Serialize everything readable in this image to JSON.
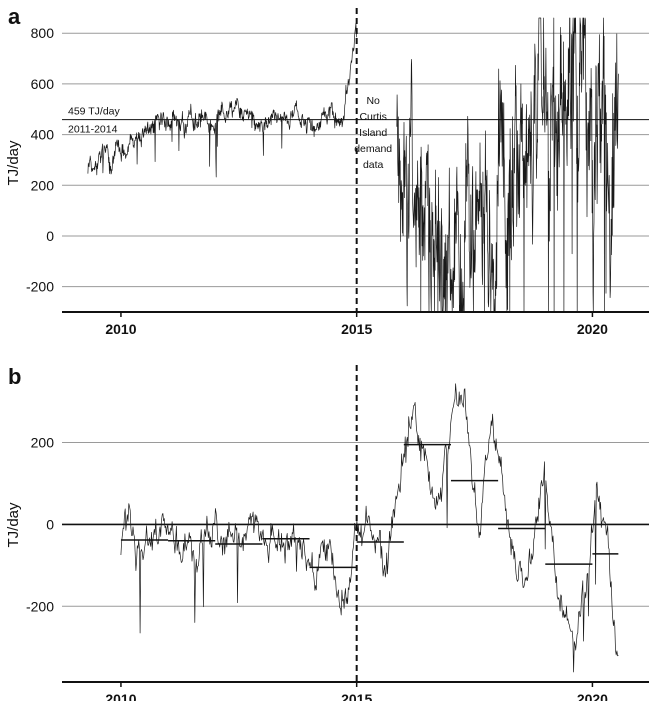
{
  "chart_data": [
    {
      "panel": "a",
      "type": "line",
      "ylabel": "TJ/day",
      "ylim": [
        -300,
        860
      ],
      "yticks": [
        -200,
        0,
        200,
        400,
        600,
        800
      ],
      "xlim": [
        2008.75,
        2021.2
      ],
      "xticks": [
        2010,
        2015,
        2020
      ],
      "grid": true,
      "reference_line": {
        "y": 459,
        "label_top": "459 TJ/day",
        "label_bottom": "2011-2014"
      },
      "vline_x": 2015.0,
      "annotation": [
        "No",
        "Curtis",
        "Island",
        "demand",
        "data"
      ],
      "series_profile": [
        {
          "x": 2009.3,
          "y": 285
        },
        {
          "x": 2009.6,
          "y": 300
        },
        {
          "x": 2009.9,
          "y": 330
        },
        {
          "x": 2010.2,
          "y": 350
        },
        {
          "x": 2010.5,
          "y": 390
        },
        {
          "x": 2010.8,
          "y": 440
        },
        {
          "x": 2011.1,
          "y": 455
        },
        {
          "x": 2011.4,
          "y": 450
        },
        {
          "x": 2011.7,
          "y": 470
        },
        {
          "x": 2012.0,
          "y": 485
        },
        {
          "x": 2012.3,
          "y": 505
        },
        {
          "x": 2012.6,
          "y": 500
        },
        {
          "x": 2012.9,
          "y": 455
        },
        {
          "x": 2013.2,
          "y": 450
        },
        {
          "x": 2013.5,
          "y": 465
        },
        {
          "x": 2013.8,
          "y": 480
        },
        {
          "x": 2014.1,
          "y": 475
        },
        {
          "x": 2014.4,
          "y": 470
        },
        {
          "x": 2014.7,
          "y": 460
        },
        {
          "x": 2014.8,
          "y": 560
        },
        {
          "x": 2014.9,
          "y": 700
        },
        {
          "x": 2015.0,
          "y": 810
        }
      ],
      "series_profile_2": [
        {
          "x": 2015.85,
          "y": 380
        },
        {
          "x": 2016.0,
          "y": 200
        },
        {
          "x": 2016.3,
          "y": 70
        },
        {
          "x": 2016.6,
          "y": -40
        },
        {
          "x": 2016.9,
          "y": -100
        },
        {
          "x": 2017.2,
          "y": -50
        },
        {
          "x": 2017.5,
          "y": 40
        },
        {
          "x": 2017.8,
          "y": 110
        },
        {
          "x": 2018.1,
          "y": 230
        },
        {
          "x": 2018.4,
          "y": 270
        },
        {
          "x": 2018.7,
          "y": 320
        },
        {
          "x": 2019.0,
          "y": 360
        },
        {
          "x": 2019.3,
          "y": 470
        },
        {
          "x": 2019.6,
          "y": 450
        },
        {
          "x": 2019.9,
          "y": 350
        },
        {
          "x": 2020.2,
          "y": 320
        },
        {
          "x": 2020.4,
          "y": 470
        },
        {
          "x": 2020.55,
          "y": 780
        }
      ]
    },
    {
      "panel": "b",
      "type": "line",
      "ylabel": "TJ/day",
      "ylim": [
        -385,
        365
      ],
      "yticks": [
        -200,
        0,
        200
      ],
      "xlim": [
        2008.75,
        2021.2
      ],
      "xticks": [
        2010,
        2015,
        2020
      ],
      "grid": true,
      "vline_x": 2015.0,
      "yearly_means": [
        {
          "x0": 2010.0,
          "x1": 2011.0,
          "y": -38
        },
        {
          "x0": 2011.0,
          "x1": 2012.0,
          "y": -40
        },
        {
          "x0": 2012.0,
          "x1": 2013.0,
          "y": -48
        },
        {
          "x0": 2013.0,
          "x1": 2014.0,
          "y": -35
        },
        {
          "x0": 2014.0,
          "x1": 2015.0,
          "y": -105
        },
        {
          "x0": 2015.0,
          "x1": 2016.0,
          "y": -43
        },
        {
          "x0": 2016.0,
          "x1": 2017.0,
          "y": 195
        },
        {
          "x0": 2017.0,
          "x1": 2018.0,
          "y": 107
        },
        {
          "x0": 2018.0,
          "x1": 2019.0,
          "y": -10
        },
        {
          "x0": 2019.0,
          "x1": 2020.0,
          "y": -97
        },
        {
          "x0": 2020.0,
          "x1": 2020.55,
          "y": -72
        }
      ],
      "series_profile": [
        {
          "x": 2010.0,
          "y": -35
        },
        {
          "x": 2010.4,
          "y": -40
        },
        {
          "x": 2010.8,
          "y": -35
        },
        {
          "x": 2011.2,
          "y": -30
        },
        {
          "x": 2011.6,
          "y": -45
        },
        {
          "x": 2012.0,
          "y": -30
        },
        {
          "x": 2012.4,
          "y": -70
        },
        {
          "x": 2012.8,
          "y": -20
        },
        {
          "x": 2013.2,
          "y": -30
        },
        {
          "x": 2013.6,
          "y": -50
        },
        {
          "x": 2014.0,
          "y": -80
        },
        {
          "x": 2014.4,
          "y": -110
        },
        {
          "x": 2014.8,
          "y": -150
        },
        {
          "x": 2015.0,
          "y": 20
        },
        {
          "x": 2015.3,
          "y": -60
        },
        {
          "x": 2015.6,
          "y": -130
        },
        {
          "x": 2015.9,
          "y": 120
        },
        {
          "x": 2016.2,
          "y": 290
        },
        {
          "x": 2016.5,
          "y": 170
        },
        {
          "x": 2016.8,
          "y": 60
        },
        {
          "x": 2017.0,
          "y": 280
        },
        {
          "x": 2017.3,
          "y": 320
        },
        {
          "x": 2017.6,
          "y": -20
        },
        {
          "x": 2017.9,
          "y": 240
        },
        {
          "x": 2018.1,
          "y": 80
        },
        {
          "x": 2018.4,
          "y": -150
        },
        {
          "x": 2018.7,
          "y": -60
        },
        {
          "x": 2019.0,
          "y": 80
        },
        {
          "x": 2019.3,
          "y": -200
        },
        {
          "x": 2019.6,
          "y": -290
        },
        {
          "x": 2019.9,
          "y": -100
        },
        {
          "x": 2020.1,
          "y": 70
        },
        {
          "x": 2020.3,
          "y": -50
        },
        {
          "x": 2020.45,
          "y": -250
        },
        {
          "x": 2020.55,
          "y": -370
        }
      ]
    }
  ]
}
